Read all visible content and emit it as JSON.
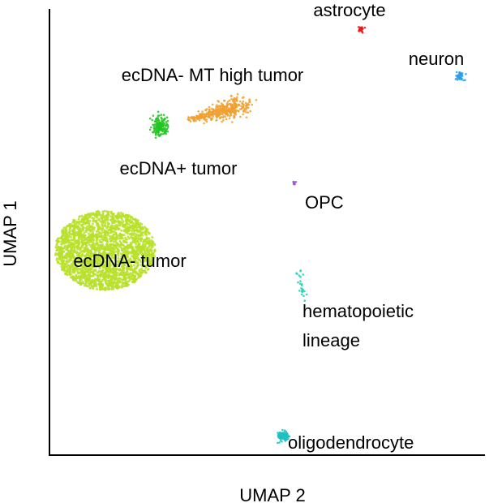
{
  "chart_data": {
    "type": "scatter",
    "title": "",
    "xlabel": "UMAP 2",
    "ylabel": "UMAP 1",
    "xlim": [
      0,
      100
    ],
    "ylim": [
      0,
      100
    ],
    "grid": false,
    "legend": "none",
    "ticks": "none",
    "clusters": [
      {
        "name": "astrocyte",
        "color": "#e41a1c",
        "center": [
          71.5,
          95.5
        ],
        "spread": [
          0.6,
          0.4
        ],
        "count": 25,
        "shape": "blob",
        "label_lines": [
          "astrocyte"
        ]
      },
      {
        "name": "neuron",
        "color": "#2b9de8",
        "center": [
          94.3,
          85.0
        ],
        "spread": [
          0.8,
          0.7
        ],
        "count": 40,
        "shape": "blob",
        "label_lines": [
          "neuron"
        ]
      },
      {
        "name": "ecDNA- MT high tumor",
        "color": "#f0a030",
        "center": [
          40.0,
          77.5
        ],
        "spread": [
          8.0,
          2.0
        ],
        "count": 420,
        "shape": "comet",
        "label_lines": [
          "ecDNA- MT high tumor"
        ]
      },
      {
        "name": "ecDNA+ tumor",
        "color": "#22c422",
        "center": [
          25.3,
          73.7
        ],
        "spread": [
          1.3,
          1.4
        ],
        "count": 170,
        "shape": "blob",
        "label_lines": [
          "ecDNA+ tumor"
        ]
      },
      {
        "name": "OPC",
        "color": "#a050e0",
        "center": [
          56.3,
          61.0
        ],
        "spread": [
          0.4,
          0.35
        ],
        "count": 8,
        "shape": "blob",
        "label_lines": [
          "OPC"
        ]
      },
      {
        "name": "ecDNA- tumor",
        "color": "#b8e02a",
        "center": [
          12.8,
          45.9
        ],
        "spread": [
          11.5,
          8.9
        ],
        "count": 2400,
        "shape": "disk",
        "label_lines": [
          "ecDNA- tumor"
        ]
      },
      {
        "name": "hematopoietic lineage",
        "color": "#1dd1b0",
        "center": [
          57.8,
          38.0
        ],
        "spread": [
          0.6,
          3.5
        ],
        "count": 24,
        "shape": "strip",
        "label_lines": [
          "hematopoietic",
          "lineage"
        ]
      },
      {
        "name": "oligodendrocyte",
        "color": "#1fbfbf",
        "center": [
          53.7,
          4.3
        ],
        "spread": [
          0.8,
          0.7
        ],
        "count": 120,
        "shape": "blob",
        "label_lines": [
          "oligodendrocyte"
        ]
      }
    ]
  }
}
